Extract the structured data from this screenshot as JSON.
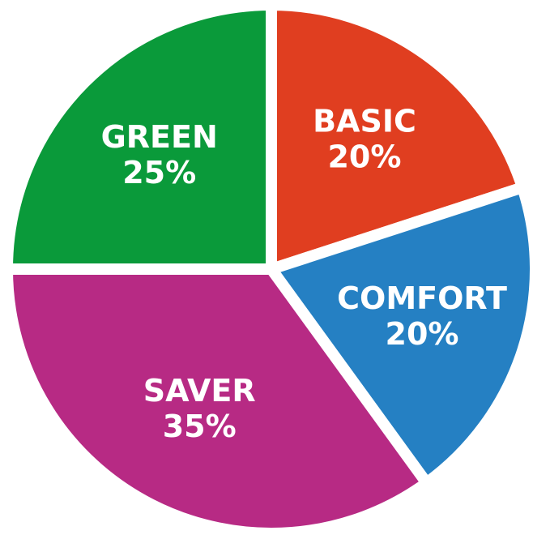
{
  "chart_data": {
    "type": "pie",
    "categories": [
      "BASIC",
      "COMFORT",
      "SAVER",
      "GREEN"
    ],
    "values": [
      20,
      20,
      35,
      25
    ],
    "value_labels": [
      "20%",
      "20%",
      "35%",
      "25%"
    ],
    "colors": [
      "#e03e20",
      "#2580c3",
      "#b72a84",
      "#0a9a3a"
    ]
  }
}
